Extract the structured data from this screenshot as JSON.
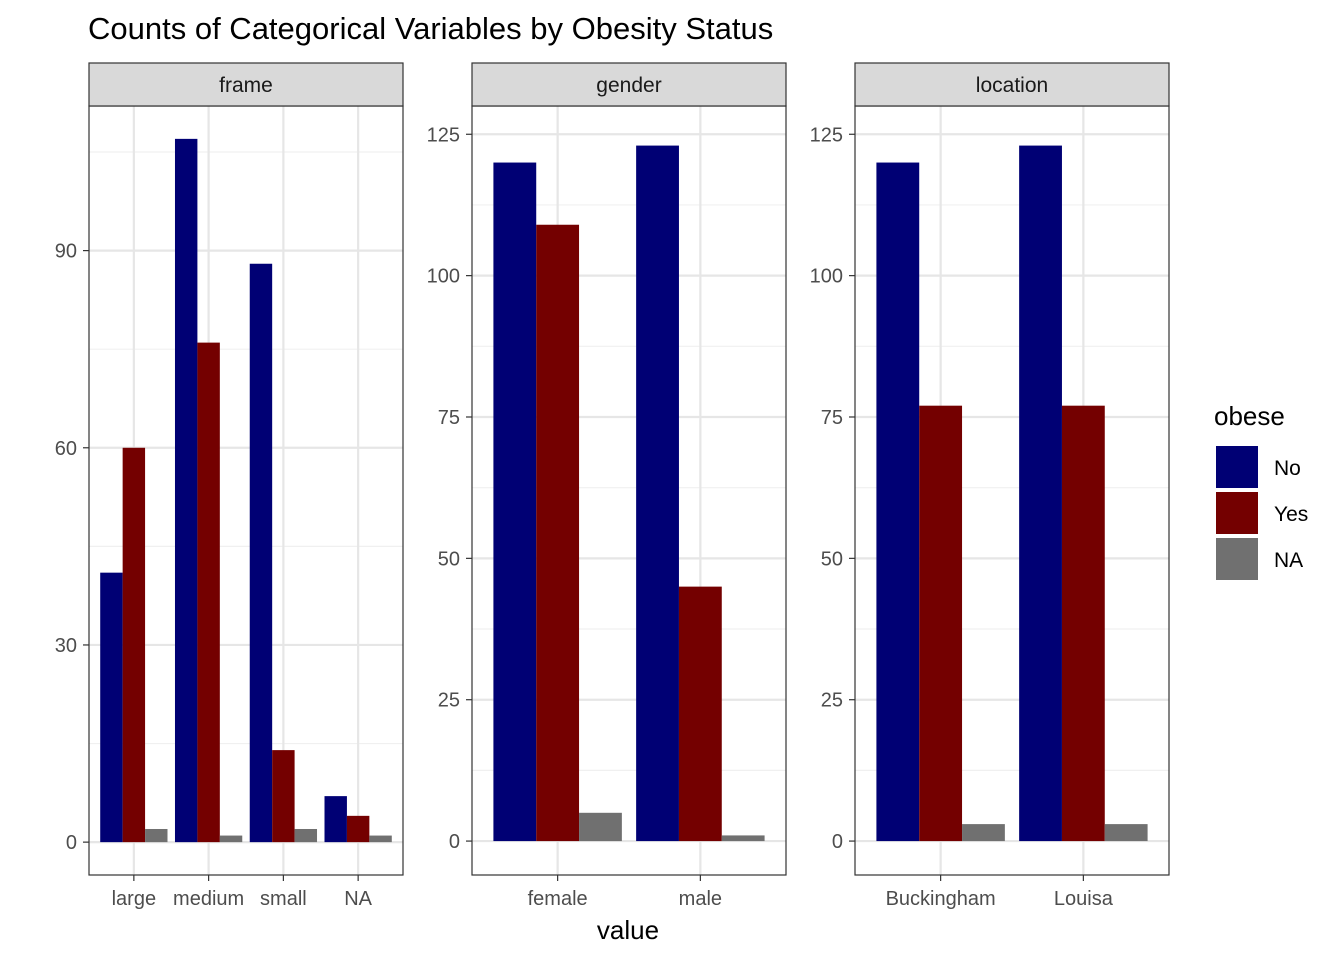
{
  "chart_data": {
    "type": "bar",
    "title": "Counts of Categorical Variables by Obesity Status",
    "xlabel": "value",
    "ylabel": "",
    "legend": {
      "title": "obese",
      "placement": "right",
      "entries": [
        {
          "label": "No",
          "color": "#000074"
        },
        {
          "label": "Yes",
          "color": "#740000"
        },
        {
          "label": "NA",
          "color": "#707070"
        }
      ]
    },
    "grid": true,
    "facets": [
      {
        "strip": "frame",
        "categories": [
          "large",
          "medium",
          "small",
          "NA"
        ],
        "ylim": [
          -5,
          112
        ],
        "yticks": [
          0,
          30,
          60,
          90
        ],
        "series": [
          {
            "name": "No",
            "values": [
              41,
              107,
              88,
              7
            ]
          },
          {
            "name": "Yes",
            "values": [
              60,
              76,
              14,
              4
            ]
          },
          {
            "name": "NA",
            "values": [
              2,
              1,
              2,
              1
            ]
          }
        ]
      },
      {
        "strip": "gender",
        "categories": [
          "female",
          "male"
        ],
        "ylim": [
          -6,
          130
        ],
        "yticks": [
          0,
          25,
          50,
          75,
          100,
          125
        ],
        "series": [
          {
            "name": "No",
            "values": [
              120,
              123
            ]
          },
          {
            "name": "Yes",
            "values": [
              109,
              45
            ]
          },
          {
            "name": "NA",
            "values": [
              5,
              1
            ]
          }
        ]
      },
      {
        "strip": "location",
        "categories": [
          "Buckingham",
          "Louisa"
        ],
        "ylim": [
          -6,
          130
        ],
        "yticks": [
          0,
          25,
          50,
          75,
          100,
          125
        ],
        "series": [
          {
            "name": "No",
            "values": [
              120,
              123
            ]
          },
          {
            "name": "Yes",
            "values": [
              77,
              77
            ]
          },
          {
            "name": "NA",
            "values": [
              3,
              3
            ]
          }
        ]
      }
    ]
  }
}
